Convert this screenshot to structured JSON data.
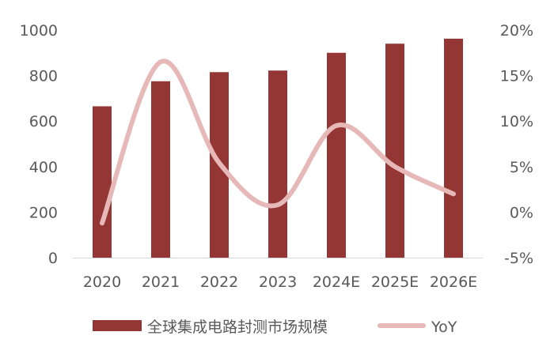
{
  "chart_data": {
    "type": "bar+line",
    "title": "",
    "categories": [
      "2020",
      "2021",
      "2022",
      "2023",
      "2024E",
      "2025E",
      "2026E"
    ],
    "series": [
      {
        "name": "全球集成电路封测市场规模",
        "type": "bar",
        "axis": "left",
        "color": "#943634",
        "values": [
          665,
          775,
          815,
          822,
          900,
          940,
          962
        ]
      },
      {
        "name": "YoY",
        "type": "line",
        "axis": "right",
        "color": "#e6b9b8",
        "values": [
          -1.2,
          16.5,
          5.4,
          0.8,
          9.5,
          5.0,
          2.0
        ]
      }
    ],
    "y_left": {
      "min": 0,
      "max": 1000,
      "ticks": [
        0,
        200,
        400,
        600,
        800,
        1000
      ],
      "tick_labels": [
        "0",
        "200",
        "400",
        "600",
        "800",
        "1000"
      ]
    },
    "y_right": {
      "min": -5,
      "max": 20,
      "ticks": [
        -5,
        0,
        5,
        10,
        15,
        20
      ],
      "tick_labels": [
        "-5%",
        "0%",
        "5%",
        "10%",
        "15%",
        "20%"
      ]
    },
    "grid": false,
    "legend_position": "bottom"
  }
}
